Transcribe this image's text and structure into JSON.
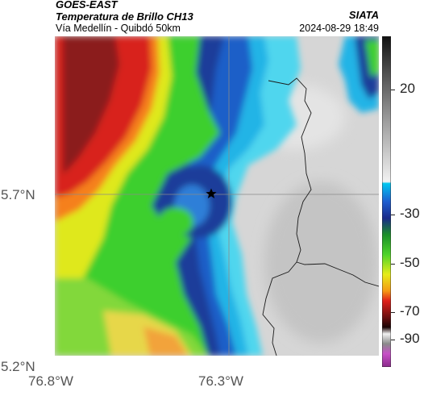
{
  "header": {
    "satellite": "GOES-EAST",
    "product": "Temperatura de Brillo CH13",
    "route": "Vía Medellín - Quibdó 50km",
    "org": "SIATA",
    "datetime": "2024-08-29 18:49"
  },
  "axes": {
    "lat_ticks": [
      "5.7°N",
      "5.2°N"
    ],
    "lon_ticks": [
      "76.8°W",
      "76.3°W"
    ]
  },
  "colorbar": {
    "ticks": [
      "20",
      "-30",
      "-50",
      "-70",
      "-90"
    ]
  },
  "colors": {
    "cold_clouds": "#8b1a1a",
    "clear_sky": "#d8d8d8",
    "marker": "#000000"
  },
  "map_symbols": {
    "site_marker": "star-icon"
  }
}
